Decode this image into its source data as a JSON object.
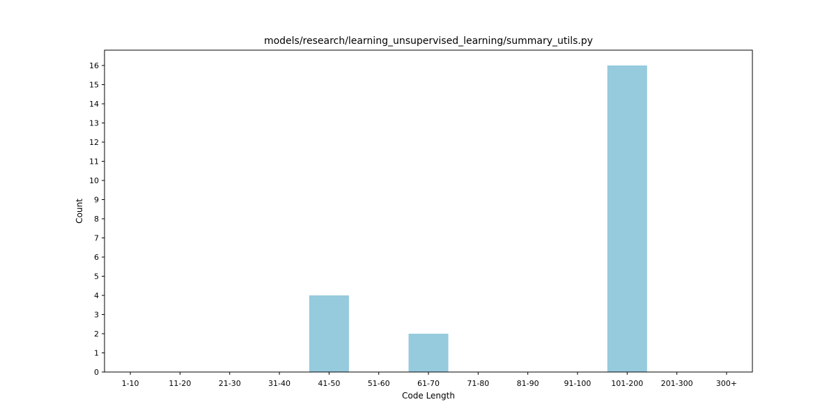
{
  "chart_data": {
    "type": "bar",
    "title": "models/research/learning_unsupervised_learning/summary_utils.py",
    "xlabel": "Code Length",
    "ylabel": "Count",
    "categories": [
      "1-10",
      "11-20",
      "21-30",
      "31-40",
      "41-50",
      "51-60",
      "61-70",
      "71-80",
      "81-90",
      "91-100",
      "101-200",
      "201-300",
      "300+"
    ],
    "values": [
      0,
      0,
      0,
      0,
      4,
      0,
      2,
      0,
      0,
      0,
      16,
      0,
      0
    ],
    "ylim": [
      0,
      16.8
    ],
    "yticks": [
      0,
      1,
      2,
      3,
      4,
      5,
      6,
      7,
      8,
      9,
      10,
      11,
      12,
      13,
      14,
      15,
      16
    ],
    "bar_color": "#96cadd",
    "grid": false,
    "legend": "none"
  }
}
